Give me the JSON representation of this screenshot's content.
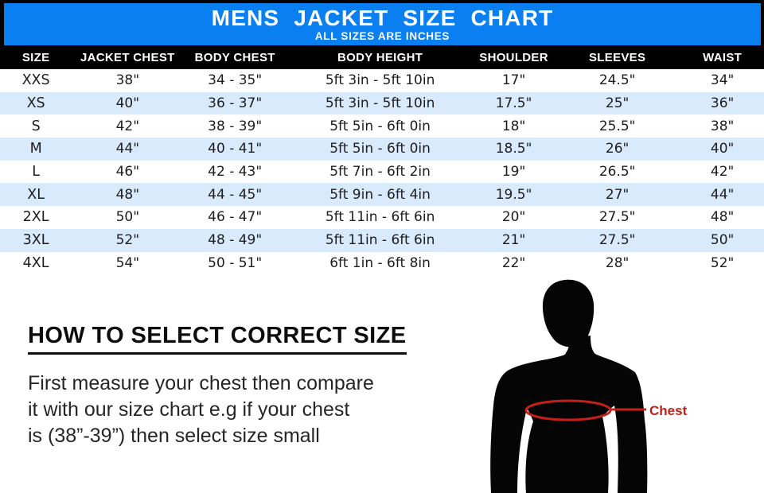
{
  "colors": {
    "banner_blue": "#0a7ff2",
    "header_bar_black": "#000000",
    "row_alt_blue": "#d9eafd",
    "accent_red": "#c42019",
    "text_dark": "#1d1d1d"
  },
  "banner": {
    "title": "MENS JACKET SIZE CHART",
    "subtitle": "ALL SIZES ARE INCHES"
  },
  "table": {
    "columns": [
      "SIZE",
      "JACKET CHEST",
      "BODY CHEST",
      "BODY HEIGHT",
      "SHOULDER",
      "SLEEVES",
      "WAIST"
    ],
    "rows": [
      [
        "XXS",
        "38\"",
        "34 - 35\"",
        "5ft 3in - 5ft 10in",
        "17\"",
        "24.5\"",
        "34\""
      ],
      [
        "XS",
        "40\"",
        "36 - 37\"",
        "5ft 3in - 5ft 10in",
        "17.5\"",
        "25\"",
        "36\""
      ],
      [
        "S",
        "42\"",
        "38 - 39\"",
        "5ft 5in - 6ft 0in",
        "18\"",
        "25.5\"",
        "38\""
      ],
      [
        "M",
        "44\"",
        "40 - 41\"",
        "5ft 5in - 6ft 0in",
        "18.5\"",
        "26\"",
        "40\""
      ],
      [
        "L",
        "46\"",
        "42 - 43\"",
        "5ft 7in - 6ft 2in",
        "19\"",
        "26.5\"",
        "42\""
      ],
      [
        "XL",
        "48\"",
        "44 - 45\"",
        "5ft 9in - 6ft 4in",
        "19.5\"",
        "27\"",
        "44\""
      ],
      [
        "2XL",
        "50\"",
        "46 - 47\"",
        "5ft 11in - 6ft 6in",
        "20\"",
        "27.5\"",
        "48\""
      ],
      [
        "3XL",
        "52\"",
        "48 - 49\"",
        "5ft 11in - 6ft 6in",
        "21\"",
        "27.5\"",
        "50\""
      ],
      [
        "4XL",
        "54\"",
        "50 - 51\"",
        "6ft 1in - 6ft 8in",
        "22\"",
        "28\"",
        "52\""
      ]
    ]
  },
  "instructions": {
    "heading": "HOW TO SELECT CORRECT SIZE",
    "lines": [
      "First measure your chest then compare",
      "it with our size chart e.g if your chest",
      "is (38”-39”) then select size small"
    ]
  },
  "figure": {
    "label": "Chest"
  }
}
